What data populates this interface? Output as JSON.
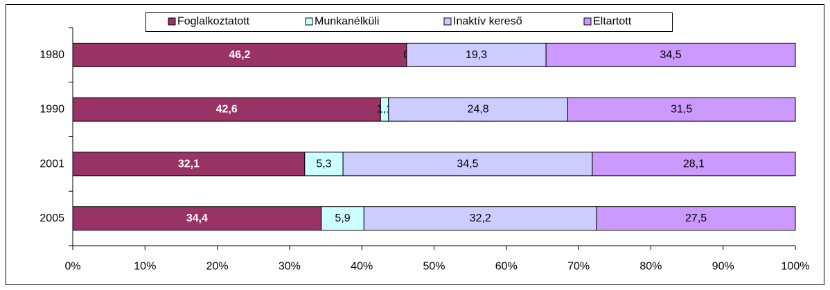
{
  "chart_data": {
    "type": "stacked-bar-horizontal",
    "categories": [
      "1980",
      "1990",
      "2001",
      "2005"
    ],
    "series": [
      {
        "name": "Foglalkoztatott",
        "color": "#993366",
        "values": [
          46.2,
          42.6,
          32.1,
          34.4
        ],
        "value_labels": [
          "46,2",
          "42,6",
          "32,1",
          "34,4"
        ]
      },
      {
        "name": "Munkanélküli",
        "color": "#ccffff",
        "values": [
          0,
          1.1,
          5.3,
          5.9
        ],
        "value_labels": [
          "0",
          "1,1",
          "5,3",
          "5,9"
        ]
      },
      {
        "name": "Inaktív kereső",
        "color": "#ccccff",
        "values": [
          19.3,
          24.8,
          34.5,
          32.2
        ],
        "value_labels": [
          "19,3",
          "24,8",
          "34,5",
          "32,2"
        ]
      },
      {
        "name": "Eltartott",
        "color": "#cc99ff",
        "values": [
          34.5,
          31.5,
          28.1,
          27.5
        ],
        "value_labels": [
          "34,5",
          "31,5",
          "28,1",
          "27,5"
        ]
      }
    ],
    "xlim": [
      0,
      100
    ],
    "xticks": [
      {
        "value": 0,
        "label": "0%"
      },
      {
        "value": 10,
        "label": "10%"
      },
      {
        "value": 20,
        "label": "20%"
      },
      {
        "value": 30,
        "label": "30%"
      },
      {
        "value": 40,
        "label": "40%"
      },
      {
        "value": 50,
        "label": "50%"
      },
      {
        "value": 60,
        "label": "60%"
      },
      {
        "value": 70,
        "label": "70%"
      },
      {
        "value": 80,
        "label": "80%"
      },
      {
        "value": 90,
        "label": "90%"
      },
      {
        "value": 100,
        "label": "100%"
      }
    ],
    "legend": "top"
  }
}
